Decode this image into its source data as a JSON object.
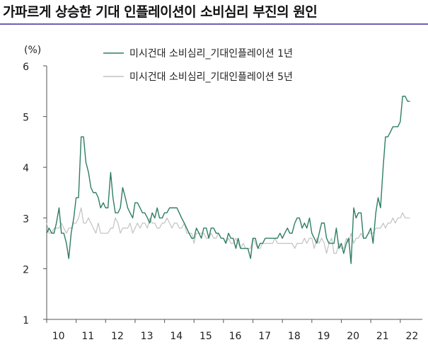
{
  "header": {
    "title": "가파르게 상승한 기대 인플레이션이 소비심리 부진의 원인"
  },
  "colors": {
    "rule": "#6b63b5",
    "series_1y": "#2e7d65",
    "series_5y": "#c2c2c2"
  },
  "chart_data": {
    "type": "line",
    "title": "",
    "xlabel": "",
    "ylabel": "(%)",
    "ylim": [
      1,
      6
    ],
    "yticks": [
      "1",
      "2",
      "3",
      "4",
      "5",
      "6"
    ],
    "xlim": [
      2010.0,
      2022.75
    ],
    "xticks": [
      "10",
      "11",
      "12",
      "13",
      "14",
      "15",
      "16",
      "17",
      "18",
      "19",
      "20",
      "21",
      "22"
    ],
    "grid": false,
    "legend_position": "top-center",
    "series": [
      {
        "name": "미시건대 소비심리_기대인플레이션 1년",
        "color": "#2e7d65",
        "x": [
          2010.0,
          2010.08,
          2010.17,
          2010.25,
          2010.33,
          2010.42,
          2010.5,
          2010.58,
          2010.67,
          2010.75,
          2010.83,
          2010.92,
          2011.0,
          2011.08,
          2011.17,
          2011.25,
          2011.33,
          2011.42,
          2011.5,
          2011.58,
          2011.67,
          2011.75,
          2011.83,
          2011.92,
          2012.0,
          2012.08,
          2012.17,
          2012.25,
          2012.33,
          2012.42,
          2012.5,
          2012.58,
          2012.67,
          2012.75,
          2012.83,
          2012.92,
          2013.0,
          2013.08,
          2013.17,
          2013.25,
          2013.33,
          2013.42,
          2013.5,
          2013.58,
          2013.67,
          2013.75,
          2013.83,
          2013.92,
          2014.0,
          2014.08,
          2014.17,
          2014.25,
          2014.33,
          2014.42,
          2014.5,
          2014.58,
          2014.67,
          2014.75,
          2014.83,
          2014.92,
          2015.0,
          2015.08,
          2015.17,
          2015.25,
          2015.33,
          2015.42,
          2015.5,
          2015.58,
          2015.67,
          2015.75,
          2015.83,
          2015.92,
          2016.0,
          2016.08,
          2016.17,
          2016.25,
          2016.33,
          2016.42,
          2016.5,
          2016.58,
          2016.67,
          2016.75,
          2016.83,
          2016.92,
          2017.0,
          2017.08,
          2017.17,
          2017.25,
          2017.33,
          2017.42,
          2017.5,
          2017.58,
          2017.67,
          2017.75,
          2017.83,
          2017.92,
          2018.0,
          2018.08,
          2018.17,
          2018.25,
          2018.33,
          2018.42,
          2018.5,
          2018.58,
          2018.67,
          2018.75,
          2018.83,
          2018.92,
          2019.0,
          2019.08,
          2019.17,
          2019.25,
          2019.33,
          2019.42,
          2019.5,
          2019.58,
          2019.67,
          2019.75,
          2019.83,
          2019.92,
          2020.0,
          2020.08,
          2020.17,
          2020.25,
          2020.33,
          2020.42,
          2020.5,
          2020.58,
          2020.67,
          2020.75,
          2020.83,
          2020.92,
          2021.0,
          2021.08,
          2021.17,
          2021.25,
          2021.33,
          2021.42,
          2021.5,
          2021.58,
          2021.67,
          2021.75,
          2021.83,
          2021.92,
          2022.0,
          2022.08,
          2022.17,
          2022.25,
          2022.33
        ],
        "values": [
          2.7,
          2.8,
          2.7,
          2.7,
          2.9,
          3.2,
          2.7,
          2.7,
          2.5,
          2.2,
          2.7,
          3.0,
          3.4,
          3.4,
          4.6,
          4.6,
          4.1,
          3.9,
          3.6,
          3.5,
          3.5,
          3.4,
          3.2,
          3.3,
          3.2,
          3.2,
          3.9,
          3.4,
          3.1,
          3.1,
          3.2,
          3.6,
          3.4,
          3.2,
          3.1,
          3.0,
          3.3,
          3.3,
          3.2,
          3.1,
          3.1,
          3.0,
          2.9,
          3.1,
          3.0,
          3.2,
          3.0,
          3.0,
          3.1,
          3.1,
          3.2,
          3.2,
          3.2,
          3.2,
          3.1,
          3.0,
          2.9,
          2.8,
          2.7,
          2.6,
          2.6,
          2.8,
          2.7,
          2.6,
          2.8,
          2.8,
          2.6,
          2.8,
          2.8,
          2.7,
          2.7,
          2.6,
          2.6,
          2.5,
          2.7,
          2.6,
          2.6,
          2.4,
          2.6,
          2.4,
          2.4,
          2.4,
          2.4,
          2.2,
          2.6,
          2.6,
          2.4,
          2.5,
          2.5,
          2.6,
          2.6,
          2.6,
          2.6,
          2.6,
          2.6,
          2.7,
          2.6,
          2.7,
          2.8,
          2.7,
          2.7,
          2.9,
          3.0,
          3.0,
          2.8,
          2.9,
          2.8,
          3.0,
          2.7,
          2.6,
          2.5,
          2.7,
          2.9,
          2.9,
          2.6,
          2.5,
          2.5,
          2.5,
          2.8,
          2.4,
          2.5,
          2.3,
          2.5,
          2.6,
          2.1,
          3.2,
          3.0,
          3.1,
          3.1,
          2.6,
          2.6,
          2.7,
          2.8,
          2.5,
          3.1,
          3.4,
          3.2,
          4.0,
          4.6,
          4.6,
          4.7,
          4.8,
          4.8,
          4.8,
          4.9,
          5.4,
          5.4,
          5.3,
          5.3
        ]
      },
      {
        "name": "미시건대 소비심리_기대인플레이션 5년",
        "color": "#c2c2c2",
        "x": [
          2010.0,
          2010.08,
          2010.17,
          2010.25,
          2010.33,
          2010.42,
          2010.5,
          2010.58,
          2010.67,
          2010.75,
          2010.83,
          2010.92,
          2011.0,
          2011.08,
          2011.17,
          2011.25,
          2011.33,
          2011.42,
          2011.5,
          2011.58,
          2011.67,
          2011.75,
          2011.83,
          2011.92,
          2012.0,
          2012.08,
          2012.17,
          2012.25,
          2012.33,
          2012.42,
          2012.5,
          2012.58,
          2012.67,
          2012.75,
          2012.83,
          2012.92,
          2013.0,
          2013.08,
          2013.17,
          2013.25,
          2013.33,
          2013.42,
          2013.5,
          2013.58,
          2013.67,
          2013.75,
          2013.83,
          2013.92,
          2014.0,
          2014.08,
          2014.17,
          2014.25,
          2014.33,
          2014.42,
          2014.5,
          2014.58,
          2014.67,
          2014.75,
          2014.83,
          2014.92,
          2015.0,
          2015.08,
          2015.17,
          2015.25,
          2015.33,
          2015.42,
          2015.5,
          2015.58,
          2015.67,
          2015.75,
          2015.83,
          2015.92,
          2016.0,
          2016.08,
          2016.17,
          2016.25,
          2016.33,
          2016.42,
          2016.5,
          2016.58,
          2016.67,
          2016.75,
          2016.83,
          2016.92,
          2017.0,
          2017.08,
          2017.17,
          2017.25,
          2017.33,
          2017.42,
          2017.5,
          2017.58,
          2017.67,
          2017.75,
          2017.83,
          2017.92,
          2018.0,
          2018.08,
          2018.17,
          2018.25,
          2018.33,
          2018.42,
          2018.5,
          2018.58,
          2018.67,
          2018.75,
          2018.83,
          2018.92,
          2019.0,
          2019.08,
          2019.17,
          2019.25,
          2019.33,
          2019.42,
          2019.5,
          2019.58,
          2019.67,
          2019.75,
          2019.83,
          2019.92,
          2020.0,
          2020.08,
          2020.17,
          2020.25,
          2020.33,
          2020.42,
          2020.5,
          2020.58,
          2020.67,
          2020.75,
          2020.83,
          2020.92,
          2021.0,
          2021.08,
          2021.17,
          2021.25,
          2021.33,
          2021.42,
          2021.5,
          2021.58,
          2021.67,
          2021.75,
          2021.83,
          2021.92,
          2022.0,
          2022.08,
          2022.17,
          2022.25,
          2022.33
        ],
        "values": [
          2.9,
          2.7,
          2.7,
          2.8,
          2.8,
          2.8,
          2.9,
          2.8,
          2.7,
          2.8,
          2.8,
          2.9,
          2.9,
          3.0,
          3.2,
          2.9,
          2.9,
          3.0,
          2.9,
          2.8,
          2.7,
          2.9,
          2.7,
          2.7,
          2.7,
          2.7,
          2.8,
          2.8,
          3.0,
          2.9,
          2.7,
          2.8,
          2.8,
          2.8,
          2.9,
          2.7,
          2.8,
          2.9,
          2.8,
          2.9,
          2.9,
          2.8,
          3.0,
          2.9,
          2.9,
          2.8,
          2.8,
          2.9,
          2.9,
          3.0,
          2.9,
          2.8,
          2.9,
          2.9,
          2.8,
          2.8,
          2.9,
          2.7,
          2.7,
          2.7,
          2.5,
          2.7,
          2.7,
          2.7,
          2.7,
          2.6,
          2.6,
          2.7,
          2.6,
          2.6,
          2.7,
          2.6,
          2.6,
          2.5,
          2.6,
          2.5,
          2.5,
          2.6,
          2.5,
          2.4,
          2.5,
          2.4,
          2.4,
          2.4,
          2.6,
          2.5,
          2.4,
          2.4,
          2.5,
          2.5,
          2.5,
          2.5,
          2.5,
          2.6,
          2.5,
          2.5,
          2.5,
          2.5,
          2.5,
          2.5,
          2.5,
          2.4,
          2.5,
          2.5,
          2.5,
          2.6,
          2.5,
          2.6,
          2.6,
          2.4,
          2.6,
          2.5,
          2.6,
          2.5,
          2.3,
          2.5,
          2.6,
          2.3,
          2.3,
          2.5,
          2.4,
          2.4,
          2.6,
          2.5,
          2.7,
          2.5,
          2.6,
          2.6,
          2.7,
          2.6,
          2.6,
          2.7,
          2.7,
          2.7,
          2.8,
          2.8,
          2.8,
          2.9,
          2.8,
          2.9,
          2.9,
          3.0,
          2.9,
          3.0,
          3.0,
          3.1,
          3.0,
          3.0,
          3.0
        ]
      }
    ]
  }
}
